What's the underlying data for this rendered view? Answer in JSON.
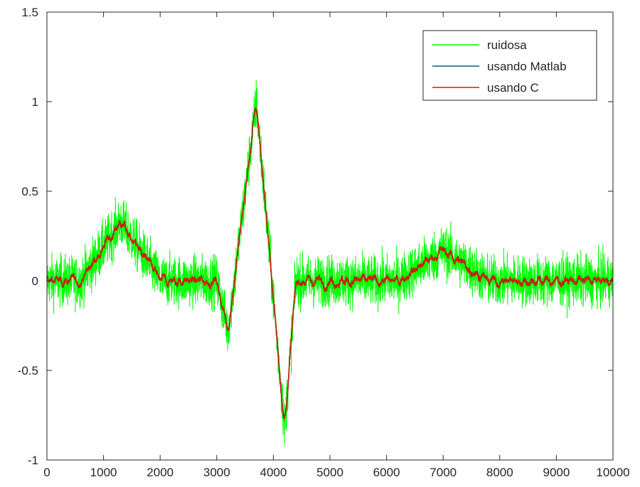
{
  "chart_data": {
    "type": "line",
    "title": "",
    "xlabel": "",
    "ylabel": "",
    "xlim": [
      0,
      10000
    ],
    "ylim": [
      -1,
      1.5
    ],
    "xticks": [
      0,
      1000,
      2000,
      3000,
      4000,
      5000,
      6000,
      7000,
      8000,
      9000,
      10000
    ],
    "yticks": [
      -1,
      -0.5,
      0,
      0.5,
      1,
      1.5
    ],
    "xtick_labels": [
      "0",
      "1000",
      "2000",
      "3000",
      "4000",
      "5000",
      "6000",
      "7000",
      "8000",
      "9000",
      "10000"
    ],
    "ytick_labels": [
      "-1",
      "-0.5",
      "0",
      "0.5",
      "1",
      "1.5"
    ],
    "grid": false,
    "legend_position": "top-right",
    "clean_signal_breakpoints": {
      "x": [
        0,
        600,
        1300,
        2000,
        3000,
        3200,
        3700,
        4200,
        4400,
        6200,
        7000,
        7800,
        10000
      ],
      "y": [
        0,
        0,
        0.33,
        0,
        0,
        -0.28,
        1.0,
        -0.82,
        0,
        0,
        0.17,
        0,
        0
      ]
    },
    "series": [
      {
        "name": "ruidosa",
        "color": "#00ff00",
        "noise_amplitude": 0.07
      },
      {
        "name": "usando Matlab",
        "color": "#0a5c8a",
        "noise_amplitude": 0.022
      },
      {
        "name": "usando C",
        "color": "#cc1f0f",
        "noise_amplitude": 0.022
      }
    ]
  }
}
